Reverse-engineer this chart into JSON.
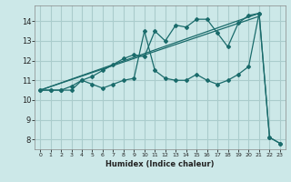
{
  "title": "",
  "xlabel": "Humidex (Indice chaleur)",
  "bg_color": "#cce8e8",
  "grid_color": "#aacccc",
  "line_color": "#1a6b6b",
  "xlim": [
    -0.5,
    23.5
  ],
  "ylim": [
    7.5,
    14.8
  ],
  "xticks": [
    0,
    1,
    2,
    3,
    4,
    5,
    6,
    7,
    8,
    9,
    10,
    11,
    12,
    13,
    14,
    15,
    16,
    17,
    18,
    19,
    20,
    21,
    22,
    23
  ],
  "yticks": [
    8,
    9,
    10,
    11,
    12,
    13,
    14
  ],
  "line1_x": [
    0,
    1,
    2,
    3,
    4,
    5,
    6,
    7,
    8,
    9,
    10,
    11,
    12,
    13,
    14,
    15,
    16,
    17,
    18,
    19,
    20,
    21,
    22,
    23
  ],
  "line1_y": [
    10.5,
    10.5,
    10.5,
    10.5,
    11.0,
    10.8,
    10.6,
    10.8,
    11.0,
    11.1,
    13.5,
    11.5,
    11.1,
    11.0,
    11.0,
    11.3,
    11.0,
    10.8,
    11.0,
    11.3,
    11.7,
    14.4,
    8.1,
    7.8
  ],
  "line2_x": [
    0,
    1,
    2,
    3,
    4,
    5,
    6,
    7,
    8,
    9,
    10,
    11,
    12,
    13,
    14,
    15,
    16,
    17,
    18,
    19,
    20,
    21,
    22,
    23
  ],
  "line2_y": [
    10.5,
    10.5,
    10.5,
    10.7,
    11.0,
    11.2,
    11.5,
    11.8,
    12.1,
    12.3,
    12.2,
    13.5,
    13.0,
    13.8,
    13.7,
    14.1,
    14.1,
    13.4,
    12.7,
    13.9,
    14.3,
    14.4,
    8.1,
    7.8
  ],
  "line3_x": [
    0,
    21
  ],
  "line3_y": [
    10.5,
    14.4
  ],
  "line4_x": [
    0,
    21
  ],
  "line4_y": [
    10.5,
    14.4
  ]
}
